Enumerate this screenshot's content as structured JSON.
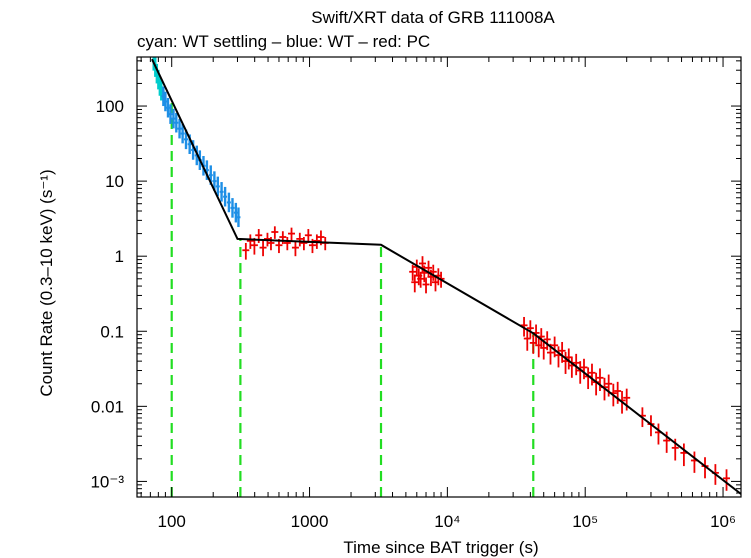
{
  "chart_data": {
    "type": "scatter",
    "title": "Swift/XRT data of GRB 111008A",
    "subtitle": "cyan: WT settling – blue: WT – red: PC",
    "xlabel": "Time since BAT trigger (s)",
    "ylabel": "Count Rate (0.3–10 keV) (s⁻¹)",
    "x_scale": "log",
    "y_scale": "log",
    "xlim": [
      56,
      1350000
    ],
    "ylim": [
      0.00062,
      450
    ],
    "grid": false,
    "x_ticks": [
      {
        "value": 100,
        "label": "100"
      },
      {
        "value": 1000,
        "label": "1000"
      },
      {
        "value": 10000,
        "label": "10⁴"
      },
      {
        "value": 100000,
        "label": "10⁵"
      },
      {
        "value": 1000000,
        "label": "10⁶"
      }
    ],
    "y_ticks": [
      {
        "value": 100,
        "label": "100"
      },
      {
        "value": 10,
        "label": "10"
      },
      {
        "value": 1,
        "label": "1"
      },
      {
        "value": 0.1,
        "label": "0.1"
      },
      {
        "value": 0.01,
        "label": "0.01"
      },
      {
        "value": 0.001,
        "label": "10⁻³"
      }
    ],
    "colors": {
      "wt_settling": "#00cccc",
      "wt": "#1e8fe6",
      "pc": "#ee0000",
      "model": "#000000",
      "breaks": "#22dd22"
    },
    "series": [
      {
        "name": "WT settling",
        "key": "wt_settling",
        "points": [
          [
            74,
            400
          ],
          [
            76,
            330
          ],
          [
            78,
            270
          ],
          [
            80,
            225
          ],
          [
            82,
            185
          ],
          [
            84,
            160
          ]
        ]
      },
      {
        "name": "WT",
        "key": "wt",
        "points": [
          [
            87,
            135
          ],
          [
            90,
            115
          ],
          [
            94,
            95
          ],
          [
            98,
            78
          ],
          [
            103,
            68
          ],
          [
            108,
            60
          ],
          [
            114,
            50
          ],
          [
            120,
            43
          ],
          [
            127,
            36
          ],
          [
            135,
            31
          ],
          [
            143,
            26
          ],
          [
            152,
            22
          ],
          [
            160,
            19
          ],
          [
            170,
            16
          ],
          [
            180,
            14
          ],
          [
            192,
            12
          ],
          [
            204,
            10
          ],
          [
            216,
            8.5
          ],
          [
            230,
            7.2
          ],
          [
            244,
            6.2
          ],
          [
            260,
            5.2
          ],
          [
            276,
            4.4
          ],
          [
            292,
            3.8
          ],
          [
            305,
            3.3
          ]
        ]
      },
      {
        "name": "PC",
        "key": "pc",
        "points": [
          [
            345,
            1.2,
            0.3
          ],
          [
            372,
            1.6,
            0.35
          ],
          [
            398,
            1.4,
            0.35
          ],
          [
            428,
            1.9,
            0.4
          ],
          [
            460,
            1.3,
            0.3
          ],
          [
            495,
            1.7,
            0.35
          ],
          [
            525,
            1.5,
            0.3
          ],
          [
            560,
            2.1,
            0.4
          ],
          [
            600,
            1.4,
            0.3
          ],
          [
            640,
            1.8,
            0.35
          ],
          [
            690,
            1.5,
            0.3
          ],
          [
            740,
            2.0,
            0.4
          ],
          [
            790,
            1.3,
            0.3
          ],
          [
            850,
            1.7,
            0.35
          ],
          [
            910,
            1.5,
            0.3
          ],
          [
            980,
            1.9,
            0.4
          ],
          [
            1050,
            1.4,
            0.3
          ],
          [
            1130,
            1.6,
            0.35
          ],
          [
            1210,
            1.8,
            0.4
          ],
          [
            1300,
            1.5,
            0.3
          ],
          [
            5600,
            0.62,
            0.15
          ],
          [
            5800,
            0.45,
            0.12
          ],
          [
            6000,
            0.72,
            0.18
          ],
          [
            6200,
            0.55,
            0.14
          ],
          [
            6400,
            0.5,
            0.12
          ],
          [
            6600,
            0.8,
            0.2
          ],
          [
            6800,
            0.6,
            0.15
          ],
          [
            7000,
            0.42,
            0.1
          ],
          [
            7300,
            0.7,
            0.17
          ],
          [
            7600,
            0.53,
            0.13
          ],
          [
            7900,
            0.62,
            0.15
          ],
          [
            8200,
            0.45,
            0.11
          ],
          [
            8600,
            0.55,
            0.14
          ],
          [
            9000,
            0.5,
            0.12
          ],
          [
            36000,
            0.12,
            0.035
          ],
          [
            38000,
            0.08,
            0.025
          ],
          [
            40000,
            0.11,
            0.03
          ],
          [
            42000,
            0.07,
            0.02
          ],
          [
            44000,
            0.095,
            0.028
          ],
          [
            46000,
            0.065,
            0.02
          ],
          [
            48000,
            0.085,
            0.025
          ],
          [
            50000,
            0.06,
            0.018
          ],
          [
            53000,
            0.078,
            0.022
          ],
          [
            56000,
            0.052,
            0.016
          ],
          [
            60000,
            0.065,
            0.02
          ],
          [
            64000,
            0.048,
            0.015
          ],
          [
            68000,
            0.055,
            0.017
          ],
          [
            72000,
            0.04,
            0.013
          ],
          [
            76000,
            0.045,
            0.014
          ],
          [
            80000,
            0.035,
            0.011
          ],
          [
            86000,
            0.038,
            0.012
          ],
          [
            92000,
            0.03,
            0.01
          ],
          [
            98000,
            0.033,
            0.01
          ],
          [
            105000,
            0.025,
            0.008
          ],
          [
            112000,
            0.028,
            0.009
          ],
          [
            120000,
            0.021,
            0.007
          ],
          [
            128000,
            0.024,
            0.008
          ],
          [
            138000,
            0.018,
            0.006
          ],
          [
            148000,
            0.02,
            0.0065
          ],
          [
            160000,
            0.015,
            0.005
          ],
          [
            172000,
            0.016,
            0.0052
          ],
          [
            185000,
            0.012,
            0.004
          ],
          [
            200000,
            0.013,
            0.0042
          ],
          [
            260000,
            0.0075,
            0.0022
          ],
          [
            300000,
            0.0058,
            0.0018
          ],
          [
            340000,
            0.0045,
            0.0014
          ],
          [
            390000,
            0.0035,
            0.0011
          ],
          [
            450000,
            0.0028,
            0.0009
          ],
          [
            520000,
            0.0024,
            0.0008
          ],
          [
            620000,
            0.0019,
            0.0006
          ],
          [
            740000,
            0.0016,
            0.0005
          ],
          [
            880000,
            0.0013,
            0.0004
          ],
          [
            1060000,
            0.0011,
            0.00035
          ]
        ]
      }
    ],
    "model": [
      [
        72,
        420
      ],
      [
        300,
        1.7
      ],
      [
        3300,
        1.42
      ],
      [
        42000,
        0.094
      ],
      [
        1350000,
        0.00068
      ]
    ],
    "breaks": [
      100,
      315,
      3300,
      42000
    ]
  }
}
